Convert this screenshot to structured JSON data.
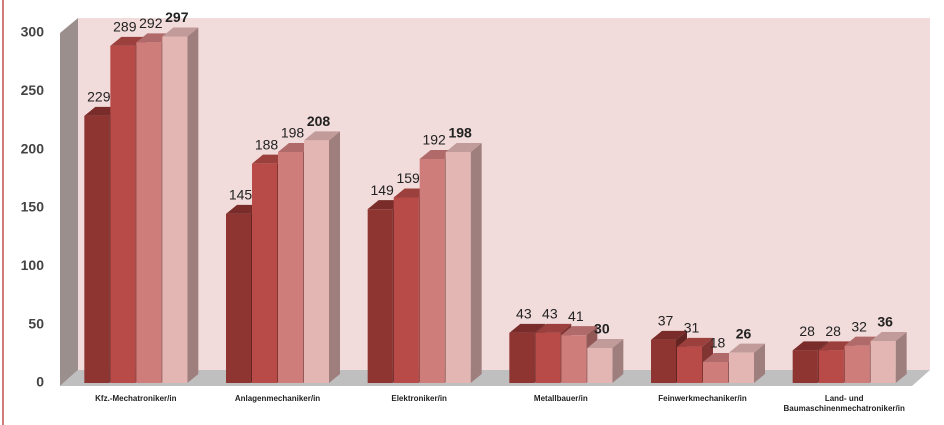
{
  "chart_data": {
    "type": "bar",
    "categories": [
      "Kfz.-Mechatroniker/in",
      "Anlagenmechaniker/in",
      "Elektroniker/in",
      "Metallbauer/in",
      "Feinwerkmechaniker/in",
      "Land- und Baumaschinenmechatroniker/in"
    ],
    "series": [
      {
        "color": "#8e3431",
        "values": [
          229,
          145,
          149,
          43,
          37,
          28
        ]
      },
      {
        "color": "#b84b48",
        "values": [
          289,
          188,
          159,
          43,
          31,
          28
        ]
      },
      {
        "color": "#cf7d7b",
        "values": [
          292,
          198,
          192,
          41,
          18,
          32
        ]
      },
      {
        "color": "#e3b6b4",
        "values": [
          297,
          208,
          198,
          30,
          26,
          36
        ]
      }
    ],
    "ylim": [
      0,
      300
    ],
    "yticks": [
      0,
      50,
      100,
      150,
      200,
      250,
      300
    ],
    "grid": false
  }
}
